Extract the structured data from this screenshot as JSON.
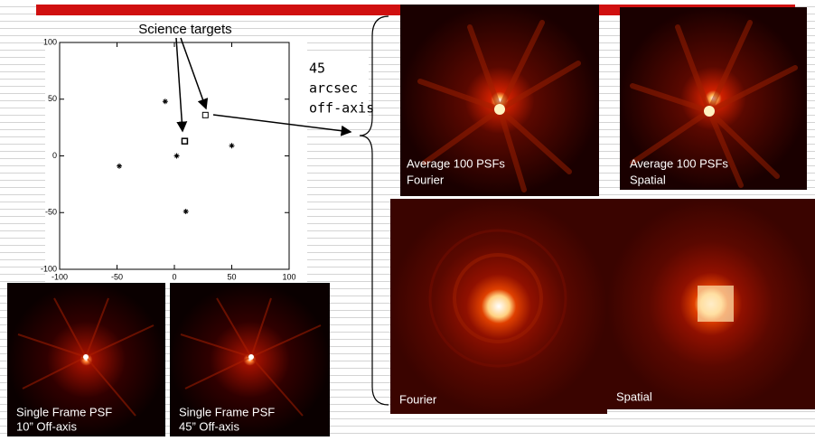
{
  "chart_data": {
    "type": "scatter",
    "xlim": [
      -100,
      100
    ],
    "ylim": [
      -100,
      100
    ],
    "xticks": [
      -100,
      -50,
      0,
      50,
      100
    ],
    "yticks": [
      -100,
      -50,
      0,
      50,
      100
    ],
    "series": [
      {
        "marker": "star",
        "color": "#000000",
        "x": [
          -8,
          -48,
          2,
          50,
          10
        ],
        "values": [
          48,
          -9,
          0,
          9,
          -49
        ]
      },
      {
        "marker": "square",
        "color": "#000000",
        "x": [
          27,
          9
        ],
        "values": [
          36,
          13
        ]
      }
    ]
  },
  "annotations": {
    "science_targets": "Science targets",
    "offaxis": [
      "45",
      "arcsec",
      "off-axis"
    ]
  },
  "images": {
    "avg_fourier": [
      "Average 100 PSFs",
      "Fourier"
    ],
    "avg_spatial": [
      "Average 100 PSFs",
      "Spatial"
    ],
    "fourier": "Fourier",
    "spatial": "Spatial",
    "single_10": [
      "Single Frame PSF",
      "10” Off-axis"
    ],
    "single_45": [
      "Single Frame PSF",
      "45” Off-axis"
    ]
  }
}
